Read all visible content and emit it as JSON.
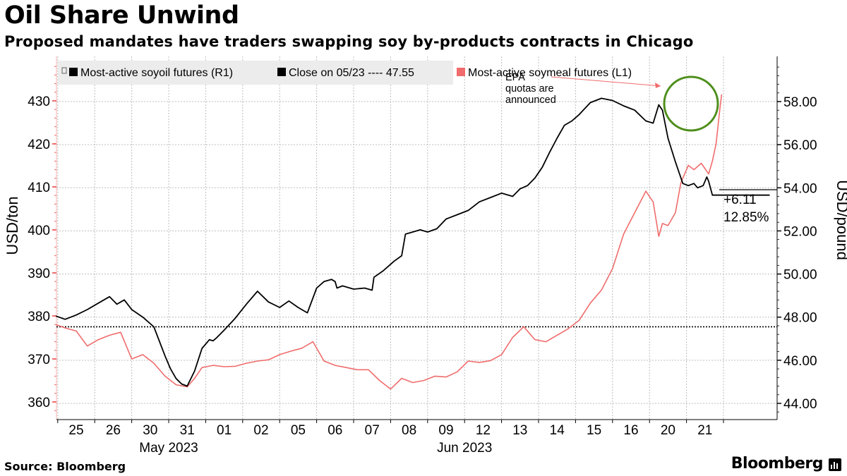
{
  "header": {
    "title": "Oil Share Unwind",
    "subtitle": "Proposed mandates have traders swapping soy by-products contracts in Chicago"
  },
  "footer": {
    "source": "Source: Bloomberg",
    "brand": "Bloomberg"
  },
  "chart_data": {
    "type": "line",
    "legend": {
      "placement": "top-left",
      "items": [
        "Most-active soyoil futures (R1)",
        "Close on 05/23 ---- 47.55",
        "Most-active soymeal futures (L1)"
      ]
    },
    "annotations": {
      "event_lines": [
        "EPA",
        "quotas are",
        "announced"
      ],
      "change_abs": "+6.11",
      "change_pct": "12.85%"
    },
    "colors": {
      "soyoil": "#000000",
      "soymeal": "#f06c6c",
      "circle": "#4f8f1d",
      "grid": "#bdbdbd"
    },
    "left_axis": {
      "label": "USD/ton",
      "range": [
        357,
        439
      ],
      "ticks": [
        360,
        370,
        380,
        390,
        400,
        410,
        420,
        430
      ],
      "tick_color": "#f06c6c"
    },
    "right_axis": {
      "label": "USD/pound",
      "range": [
        43.5,
        59.9
      ],
      "ticks": [
        44,
        46,
        48,
        50,
        52,
        54,
        56,
        58
      ],
      "tick_labels": [
        "44.00",
        "46.00",
        "48.00",
        "50.00",
        "52.00",
        "54.00",
        "56.00",
        "58.00"
      ]
    },
    "x_axis": {
      "categories": [
        "25",
        "26",
        "30",
        "31",
        "01",
        "02",
        "05",
        "06",
        "07",
        "08",
        "09",
        "12",
        "13",
        "14",
        "15",
        "16",
        "20",
        "21"
      ],
      "month_labels": [
        {
          "label": "May 2023",
          "at": 2.5
        },
        {
          "label": "Jun 2023",
          "at": 10.5
        }
      ],
      "range": [
        -0.55,
        19.25
      ]
    },
    "reference_line": {
      "value": 47.55,
      "axis": "right"
    },
    "series": [
      {
        "name": "Most-active soyoil futures (R1)",
        "axis": "right",
        "x": [
          -0.55,
          -0.3,
          0.0,
          0.3,
          0.6,
          0.9,
          1.1,
          1.3,
          1.5,
          1.8,
          2.1,
          2.4,
          2.55,
          2.7,
          2.85,
          3.0,
          3.2,
          3.4,
          3.6,
          3.7,
          3.8,
          4.0,
          4.3,
          4.6,
          4.9,
          5.2,
          5.5,
          5.75,
          6.0,
          6.25,
          6.5,
          6.7,
          6.9,
          7.0,
          7.05,
          7.2,
          7.5,
          7.8,
          8.0,
          8.05,
          8.3,
          8.6,
          8.8,
          8.9,
          9.1,
          9.3,
          9.5,
          9.75,
          10.0,
          10.3,
          10.6,
          10.9,
          11.2,
          11.5,
          11.8,
          12.0,
          12.2,
          12.4,
          12.6,
          12.8,
          13.0,
          13.2,
          13.4,
          13.6,
          13.9,
          14.2,
          14.5,
          14.8,
          15.1,
          15.4,
          15.6,
          15.75,
          15.85,
          16.0,
          16.2,
          16.4,
          16.55,
          16.7,
          16.8,
          16.95,
          17.05,
          17.1,
          17.2,
          17.4,
          17.55,
          17.7,
          17.8,
          17.9,
          18.0,
          18.1,
          18.2,
          18.3,
          18.45,
          18.6,
          18.75
        ],
        "y": [
          48.05,
          47.9,
          48.1,
          48.35,
          48.65,
          48.95,
          48.6,
          48.8,
          48.35,
          48.0,
          47.55,
          46.2,
          45.6,
          45.15,
          44.9,
          44.8,
          45.5,
          46.55,
          46.95,
          46.9,
          47.05,
          47.4,
          47.95,
          48.6,
          49.2,
          48.7,
          48.45,
          48.75,
          48.45,
          48.2,
          49.35,
          49.65,
          49.75,
          49.65,
          49.35,
          49.45,
          49.3,
          49.35,
          49.25,
          49.85,
          50.15,
          50.6,
          50.85,
          51.85,
          51.95,
          52.05,
          51.95,
          52.1,
          52.55,
          52.75,
          52.95,
          53.35,
          53.55,
          53.75,
          53.6,
          53.95,
          54.1,
          54.45,
          54.95,
          55.65,
          56.3,
          56.9,
          57.1,
          57.4,
          57.95,
          58.15,
          58.05,
          57.8,
          57.6,
          57.1,
          57.0,
          57.85,
          57.6,
          56.3,
          55.2,
          54.2,
          54.1,
          54.2,
          54.0,
          54.1,
          54.5,
          54.3,
          53.66,
          53.66,
          53.66,
          53.66,
          53.66,
          53.66,
          53.66,
          53.66,
          53.66,
          53.66,
          53.66,
          53.66,
          53.66
        ]
      },
      {
        "name": "Most-active soymeal futures (L1)",
        "axis": "left",
        "x": [
          -0.55,
          -0.3,
          0.0,
          0.3,
          0.6,
          0.9,
          1.2,
          1.5,
          1.8,
          2.1,
          2.4,
          2.7,
          3.0,
          3.2,
          3.4,
          3.7,
          4.0,
          4.3,
          4.6,
          4.9,
          5.2,
          5.5,
          5.8,
          6.1,
          6.4,
          6.7,
          7.0,
          7.3,
          7.6,
          7.9,
          8.2,
          8.5,
          8.8,
          9.1,
          9.4,
          9.7,
          10.0,
          10.3,
          10.6,
          10.9,
          11.2,
          11.5,
          11.8,
          12.1,
          12.4,
          12.7,
          13.0,
          13.3,
          13.6,
          13.9,
          14.2,
          14.5,
          14.8,
          15.1,
          15.4,
          15.6,
          15.75,
          15.85,
          16.0,
          16.2,
          16.35,
          16.45,
          16.55,
          16.7,
          16.9,
          17.1,
          17.2,
          17.3,
          17.4,
          17.45
        ],
        "y": [
          378.0,
          377.2,
          376.5,
          373.0,
          374.5,
          375.5,
          376.2,
          370.0,
          371.0,
          369.0,
          366.0,
          364.0,
          363.5,
          365.5,
          368.0,
          368.5,
          368.2,
          368.3,
          369.0,
          369.5,
          369.8,
          371.0,
          371.8,
          372.5,
          374.0,
          369.5,
          368.5,
          368.0,
          367.5,
          367.5,
          365.0,
          363.0,
          365.5,
          364.5,
          365.0,
          366.0,
          365.8,
          367.0,
          369.5,
          369.2,
          369.6,
          371.0,
          375.0,
          377.5,
          374.5,
          374.0,
          375.5,
          377.0,
          379.0,
          383.0,
          386.0,
          391.0,
          399.0,
          404.0,
          409.0,
          406.5,
          398.5,
          401.5,
          401.0,
          404.0,
          411.0,
          413.0,
          415.0,
          414.0,
          415.5,
          413.0,
          416.0,
          420.0,
          428.0,
          431.5
        ]
      }
    ]
  }
}
